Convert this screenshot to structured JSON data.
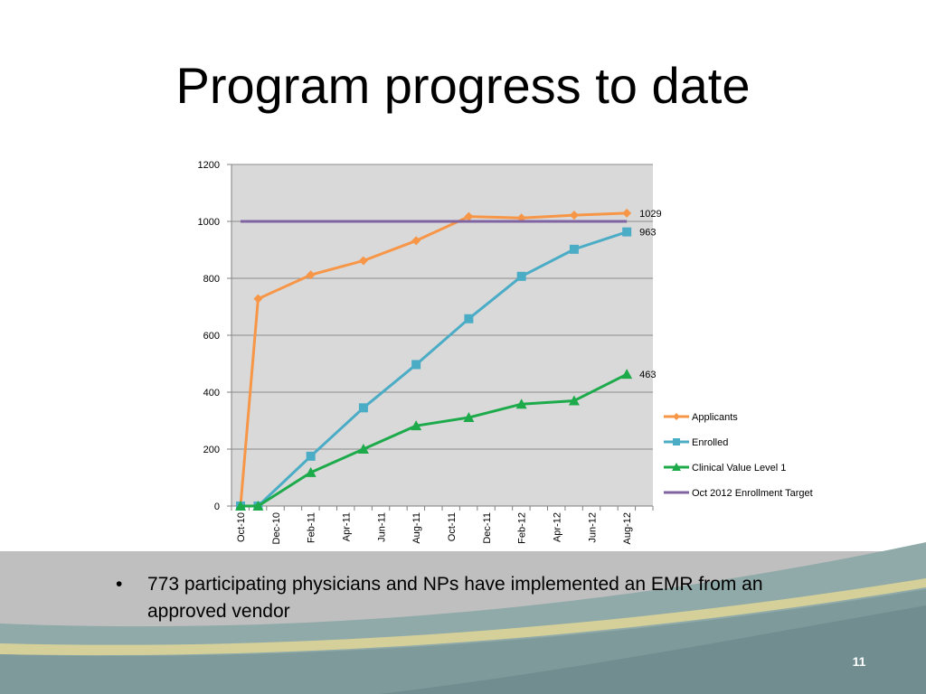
{
  "slide": {
    "title": "Program progress to date",
    "bullet_marker": "•",
    "bullet": "773 participating physicians and NPs have implemented an EMR from an approved vendor",
    "page_number": "11"
  },
  "colors": {
    "applicants": "#F79646",
    "enrolled": "#4BACC6",
    "clinical": "#1CAA4B",
    "target": "#8064A2",
    "plot_bg": "#D9D9D9",
    "grid": "#8C8C8C"
  },
  "chart_data": {
    "type": "line",
    "title": "",
    "xlabel": "",
    "ylabel": "",
    "ylim": [
      0,
      1200
    ],
    "yticks": [
      0,
      200,
      400,
      600,
      800,
      1000,
      1200
    ],
    "x_tick_labels": [
      "Oct-10",
      "Dec-10",
      "Feb-11",
      "Apr-11",
      "Jun-11",
      "Aug-11",
      "Oct-11",
      "Dec-11",
      "Feb-12",
      "Apr-12",
      "Jun-12",
      "Aug-12"
    ],
    "x_range": [
      "2010-10",
      "2012-10"
    ],
    "grid": true,
    "legend": "right",
    "series": [
      {
        "name": "Applicants",
        "marker": "diamond",
        "points": [
          [
            "2010-10",
            0
          ],
          [
            "2010-11",
            728
          ],
          [
            "2011-02",
            812
          ],
          [
            "2011-05",
            862
          ],
          [
            "2011-08",
            932
          ],
          [
            "2011-11",
            1017
          ],
          [
            "2012-02",
            1012
          ],
          [
            "2012-05",
            1022
          ],
          [
            "2012-08",
            1029
          ]
        ],
        "end_label": "1029"
      },
      {
        "name": "Enrolled",
        "marker": "square",
        "points": [
          [
            "2010-10",
            0
          ],
          [
            "2010-11",
            0
          ],
          [
            "2011-02",
            175
          ],
          [
            "2011-05",
            345
          ],
          [
            "2011-08",
            497
          ],
          [
            "2011-11",
            658
          ],
          [
            "2012-02",
            807
          ],
          [
            "2012-05",
            902
          ],
          [
            "2012-08",
            963
          ]
        ],
        "end_label": "963"
      },
      {
        "name": "Clinical Value Level 1",
        "marker": "triangle",
        "points": [
          [
            "2010-10",
            0
          ],
          [
            "2010-11",
            0
          ],
          [
            "2011-02",
            118
          ],
          [
            "2011-05",
            200
          ],
          [
            "2011-08",
            282
          ],
          [
            "2011-11",
            311
          ],
          [
            "2012-02",
            358
          ],
          [
            "2012-05",
            370
          ],
          [
            "2012-08",
            463
          ]
        ],
        "end_label": "463"
      },
      {
        "name": "Oct 2012 Enrollment Target",
        "marker": "none",
        "points": [
          [
            "2010-10",
            1000
          ],
          [
            "2012-08",
            1000
          ]
        ]
      }
    ]
  }
}
